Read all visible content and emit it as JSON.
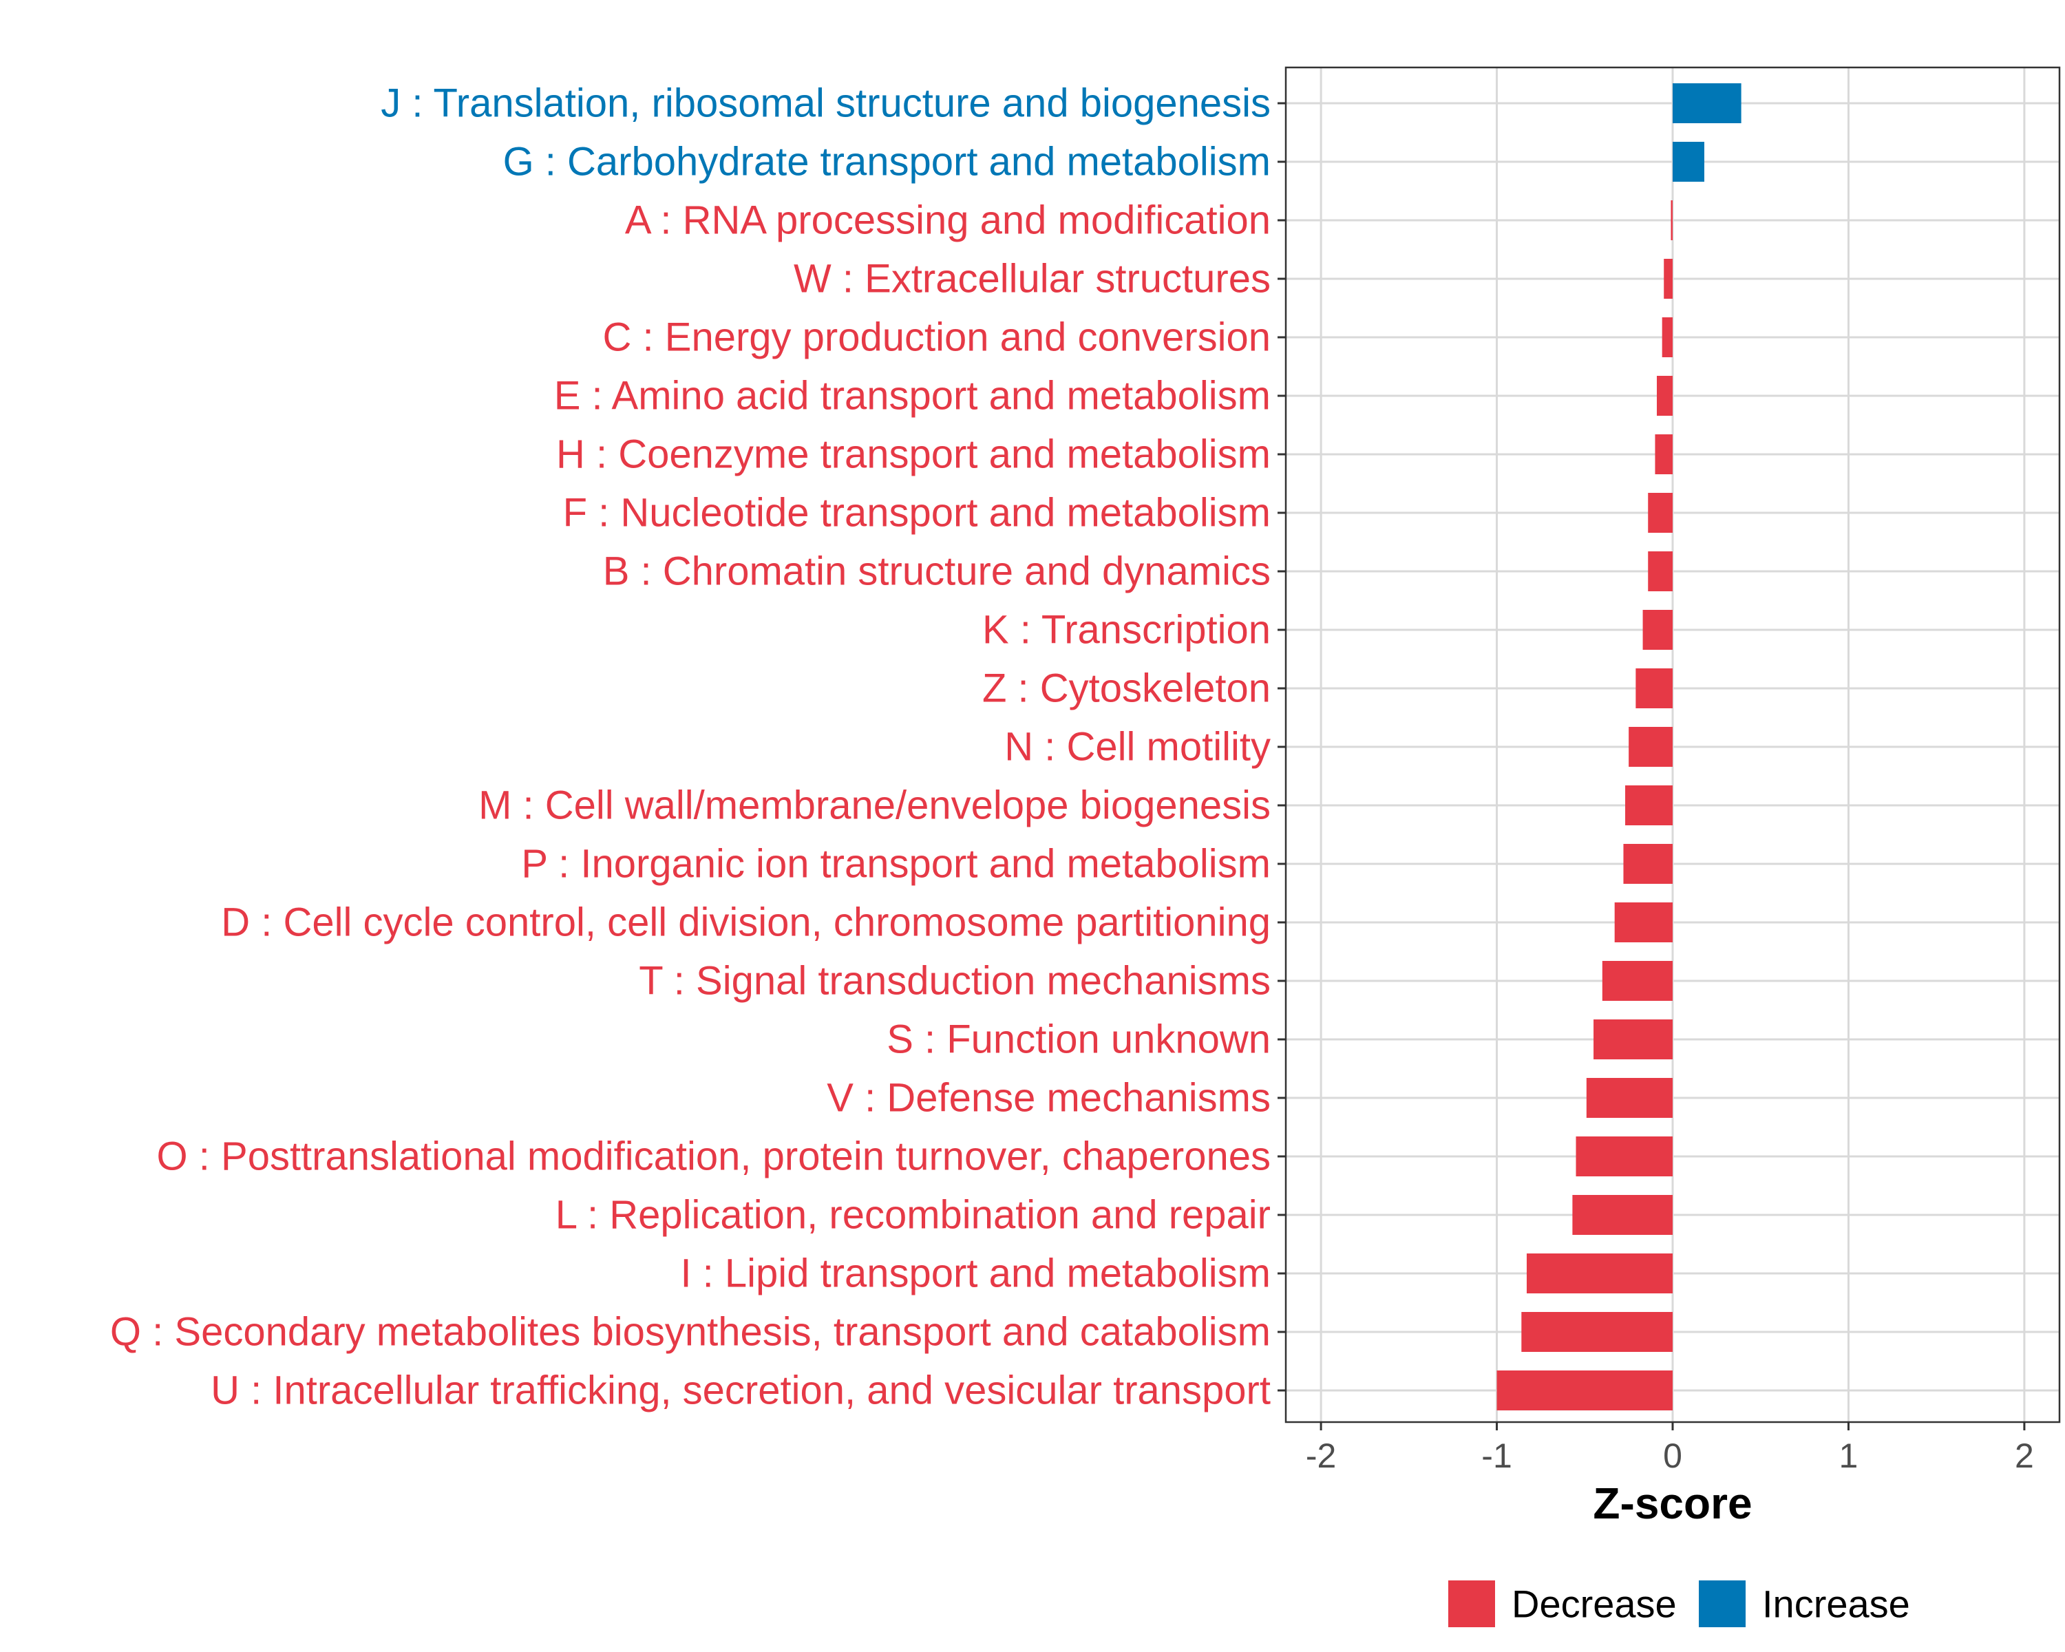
{
  "chart_data": {
    "type": "bar",
    "orientation": "horizontal",
    "xlabel": "Z-score",
    "xlim": [
      -2.2,
      2.2
    ],
    "xticks": [
      -2,
      -1,
      0,
      1,
      2
    ],
    "xtick_labels": [
      "-2",
      "-1",
      "0",
      "1",
      "2"
    ],
    "grid": true,
    "legend_position": "bottom",
    "legend": [
      {
        "label": "Decrease",
        "color": "#E63946"
      },
      {
        "label": "Increase",
        "color": "#0077B6"
      }
    ],
    "categories": [
      {
        "label": "J : Translation, ribosomal structure and biogenesis",
        "value": 0.39,
        "direction": "Increase"
      },
      {
        "label": "G : Carbohydrate transport and metabolism",
        "value": 0.18,
        "direction": "Increase"
      },
      {
        "label": "A : RNA processing and modification",
        "value": -0.01,
        "direction": "Decrease"
      },
      {
        "label": "W : Extracellular structures",
        "value": -0.05,
        "direction": "Decrease"
      },
      {
        "label": "C : Energy production and conversion",
        "value": -0.06,
        "direction": "Decrease"
      },
      {
        "label": "E : Amino acid transport and metabolism",
        "value": -0.09,
        "direction": "Decrease"
      },
      {
        "label": "H : Coenzyme transport and metabolism",
        "value": -0.1,
        "direction": "Decrease"
      },
      {
        "label": "F : Nucleotide transport and metabolism",
        "value": -0.14,
        "direction": "Decrease"
      },
      {
        "label": "B : Chromatin structure and dynamics",
        "value": -0.14,
        "direction": "Decrease"
      },
      {
        "label": "K : Transcription",
        "value": -0.17,
        "direction": "Decrease"
      },
      {
        "label": "Z : Cytoskeleton",
        "value": -0.21,
        "direction": "Decrease"
      },
      {
        "label": "N : Cell motility",
        "value": -0.25,
        "direction": "Decrease"
      },
      {
        "label": "M : Cell wall/membrane/envelope biogenesis",
        "value": -0.27,
        "direction": "Decrease"
      },
      {
        "label": "P : Inorganic ion transport and metabolism",
        "value": -0.28,
        "direction": "Decrease"
      },
      {
        "label": "D : Cell cycle control, cell division, chromosome partitioning",
        "value": -0.33,
        "direction": "Decrease"
      },
      {
        "label": "T : Signal transduction mechanisms",
        "value": -0.4,
        "direction": "Decrease"
      },
      {
        "label": "S : Function unknown",
        "value": -0.45,
        "direction": "Decrease"
      },
      {
        "label": "V : Defense mechanisms",
        "value": -0.49,
        "direction": "Decrease"
      },
      {
        "label": "O : Posttranslational modification, protein turnover, chaperones",
        "value": -0.55,
        "direction": "Decrease"
      },
      {
        "label": "L : Replication, recombination and repair",
        "value": -0.57,
        "direction": "Decrease"
      },
      {
        "label": "I : Lipid transport and metabolism",
        "value": -0.83,
        "direction": "Decrease"
      },
      {
        "label": "Q : Secondary metabolites biosynthesis, transport and catabolism",
        "value": -0.86,
        "direction": "Decrease"
      },
      {
        "label": "U : Intracellular trafficking, secretion, and vesicular transport",
        "value": -1.0,
        "direction": "Decrease"
      }
    ]
  }
}
